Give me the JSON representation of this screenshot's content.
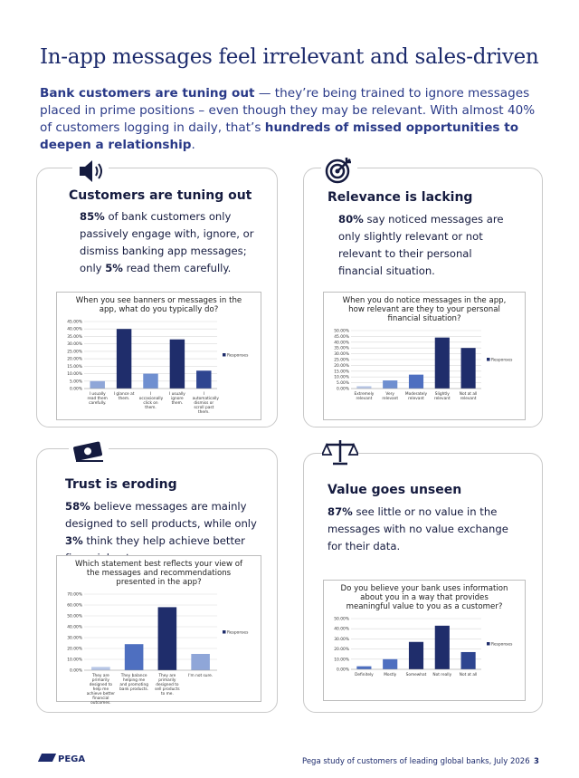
{
  "header": {
    "title": "In-app messages feel irrelevant and sales-driven",
    "intro": [
      {
        "text": "Bank customers are tuning out",
        "bold": true
      },
      {
        "text": " — they’re being trained to ignore messages placed in prime positions – even though they may be relevant. With almost 40% of customers logging in daily, that’s ",
        "bold": false
      },
      {
        "text": "hundreds of missed opportunities to deepen a relationship",
        "bold": true
      },
      {
        "text": ".",
        "bold": false
      }
    ]
  },
  "cards": [
    {
      "heading": "Customers are tuning out",
      "body": [
        {
          "text": "85%",
          "bold": true
        },
        {
          "text": " of bank customers only passively engage with, ignore, or dismiss banking app messages; only ",
          "bold": false
        },
        {
          "text": "5%",
          "bold": true
        },
        {
          "text": " read them carefully.",
          "bold": false
        }
      ],
      "chart_data": {
        "type": "bar",
        "title": "When you see banners or messages in the app, what do you typically do?",
        "categories": [
          "I usually read them carefully.",
          "I glance at them.",
          "I occasionally click on them.",
          "I usually ignore them.",
          "I automatically dismiss or scroll past them."
        ],
        "series": [
          {
            "name": "Responses",
            "color": "#1f2d6b",
            "colors": [
              "#8fa6d8",
              "#1f2d6b",
              "#6f8fd0",
              "#1f2d6b",
              "#2e4590"
            ],
            "values": [
              5,
              40,
              10,
              33,
              12
            ]
          }
        ],
        "ylim": [
          0,
          45
        ],
        "yticks": [
          {
            "value": 0,
            "label": "0.00%"
          },
          {
            "value": 5,
            "label": "5.00%"
          },
          {
            "value": 10,
            "label": "10.00%"
          },
          {
            "value": 15,
            "label": "15.00%"
          },
          {
            "value": 20,
            "label": "20.00%"
          },
          {
            "value": 25,
            "label": "25.00%"
          },
          {
            "value": 30,
            "label": "30.00%"
          },
          {
            "value": 35,
            "label": "35.00%"
          },
          {
            "value": 40,
            "label": "40.00%"
          },
          {
            "value": 45,
            "label": "45.00%"
          }
        ],
        "grid": true,
        "legend": "right"
      }
    },
    {
      "heading": "Relevance is lacking",
      "body": [
        {
          "text": "80%",
          "bold": true
        },
        {
          "text": " say noticed messages are only slightly relevant or not relevant to their personal financial situation.",
          "bold": false
        }
      ],
      "chart_data": {
        "type": "bar",
        "title": "When you do notice messages in the app, how relevant are they to your personal financial situation?",
        "categories": [
          "Extremely relevant",
          "Very relevant",
          "Moderately relevant",
          "Slightly relevant",
          "Not at all relevant"
        ],
        "series": [
          {
            "name": "Responses",
            "color": "#1f2d6b",
            "colors": [
              "#b7c6e6",
              "#6f8fd0",
              "#4e6fc0",
              "#1f2d6b",
              "#1f2d6b"
            ],
            "values": [
              2,
              7,
              12,
              44,
              35
            ]
          }
        ],
        "ylim": [
          0,
          50
        ],
        "yticks": [
          {
            "value": 0,
            "label": "0.00%"
          },
          {
            "value": 5,
            "label": "5.00%"
          },
          {
            "value": 10,
            "label": "10.00%"
          },
          {
            "value": 15,
            "label": "15.00%"
          },
          {
            "value": 20,
            "label": "20.00%"
          },
          {
            "value": 25,
            "label": "25.00%"
          },
          {
            "value": 30,
            "label": "30.00%"
          },
          {
            "value": 35,
            "label": "35.00%"
          },
          {
            "value": 40,
            "label": "40.00%"
          },
          {
            "value": 45,
            "label": "45.00%"
          },
          {
            "value": 50,
            "label": "50.00%"
          }
        ],
        "grid": true,
        "legend": "right"
      }
    },
    {
      "heading": "Trust is eroding",
      "body": [
        {
          "text": "58%",
          "bold": true
        },
        {
          "text": " believe messages are mainly designed to sell products, while only ",
          "bold": false
        },
        {
          "text": "3%",
          "bold": true
        },
        {
          "text": " think they help achieve better financial outcomes.",
          "bold": false
        }
      ],
      "chart_data": {
        "type": "bar",
        "title": "Which statement best reflects your view of the messages and recommendations presented in the app?",
        "categories": [
          "They are primarily designed to help me achieve better financial outcomes.",
          "They balance helping me and promoting bank products.",
          "They are primarily designed to sell products to me.",
          "I'm not sure."
        ],
        "series": [
          {
            "name": "Responses",
            "color": "#1f2d6b",
            "colors": [
              "#b7c6e6",
              "#4e6fc0",
              "#1f2d6b",
              "#8fa6d8"
            ],
            "values": [
              3,
              24,
              58,
              15
            ]
          }
        ],
        "ylim": [
          0,
          70
        ],
        "yticks": [
          {
            "value": 0,
            "label": "0.00%"
          },
          {
            "value": 10,
            "label": "10.00%"
          },
          {
            "value": 20,
            "label": "20.00%"
          },
          {
            "value": 30,
            "label": "30.00%"
          },
          {
            "value": 40,
            "label": "40.00%"
          },
          {
            "value": 50,
            "label": "50.00%"
          },
          {
            "value": 60,
            "label": "60.00%"
          },
          {
            "value": 70,
            "label": "70.00%"
          }
        ],
        "grid": true,
        "legend": "right"
      }
    },
    {
      "heading": "Value goes unseen",
      "body": [
        {
          "text": "87%",
          "bold": true
        },
        {
          "text": " see little or no value in the messages with no value exchange for their data.",
          "bold": false
        }
      ],
      "chart_data": {
        "type": "bar",
        "title": "Do you believe your bank uses information about you in a way that provides meaningful value to you as a customer?",
        "categories": [
          "Definitely",
          "Mostly",
          "Somewhat",
          "Not really",
          "Not at all"
        ],
        "series": [
          {
            "name": "Responses",
            "color": "#1f2d6b",
            "colors": [
              "#4e6fc0",
              "#4e6fc0",
              "#1f2d6b",
              "#1f2d6b",
              "#2e4590"
            ],
            "values": [
              3,
              10,
              27,
              43,
              17
            ]
          }
        ],
        "ylim": [
          0,
          50
        ],
        "yticks": [
          {
            "value": 0,
            "label": "0.00%"
          },
          {
            "value": 10,
            "label": "10.00%"
          },
          {
            "value": 20,
            "label": "20.00%"
          },
          {
            "value": 30,
            "label": "30.00%"
          },
          {
            "value": 40,
            "label": "40.00%"
          },
          {
            "value": 50,
            "label": "50.00%"
          }
        ],
        "grid": true,
        "legend": "right"
      }
    }
  ],
  "footer": {
    "logo": "PEGA",
    "source": "Pega study of customers of leading global banks, July 2026",
    "page": "3"
  }
}
